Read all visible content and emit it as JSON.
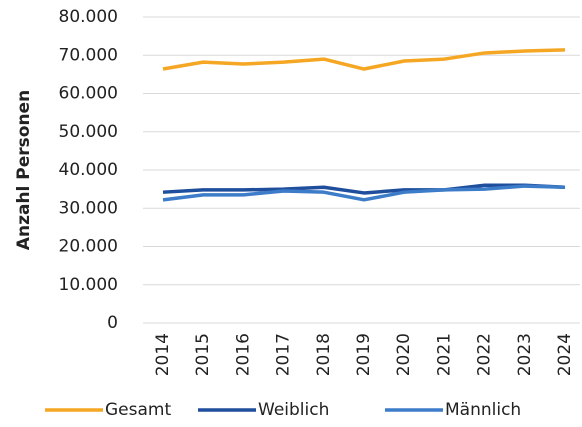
{
  "chart_data": {
    "type": "line",
    "y_label": "Anzahl Personen",
    "categories": [
      "2014",
      "2015",
      "2016",
      "2017",
      "2018",
      "2019",
      "2020",
      "2021",
      "2022",
      "2023",
      "2024"
    ],
    "series": [
      {
        "name": "Gesamt",
        "color": "#f5a623",
        "values": [
          66400,
          68200,
          67700,
          68200,
          69000,
          66400,
          68500,
          69000,
          70600,
          71100,
          71400
        ]
      },
      {
        "name": "Weiblich",
        "color": "#1f4e9c",
        "values": [
          34200,
          34800,
          34800,
          35000,
          35500,
          34000,
          34800,
          34800,
          36000,
          36000,
          35500
        ]
      },
      {
        "name": "Männlich",
        "color": "#3d7cc9",
        "values": [
          32200,
          33500,
          33500,
          34500,
          34200,
          32200,
          34200,
          34800,
          35000,
          35800,
          35500
        ]
      }
    ],
    "ylim": [
      0,
      80000
    ],
    "yticks": [
      0,
      {
        "value": 10000,
        "label": "10.000"
      },
      {
        "value": 20000,
        "label": "20.000"
      },
      {
        "value": 30000,
        "label": "30.000"
      },
      {
        "value": 40000,
        "label": "40.000"
      },
      {
        "value": 50000,
        "label": "50.000"
      },
      {
        "value": 60000,
        "label": "60.000"
      },
      {
        "value": 70000,
        "label": "70.000"
      },
      {
        "value": 80000,
        "label": "80.000"
      }
    ],
    "grid": true,
    "legend": "bottom"
  }
}
